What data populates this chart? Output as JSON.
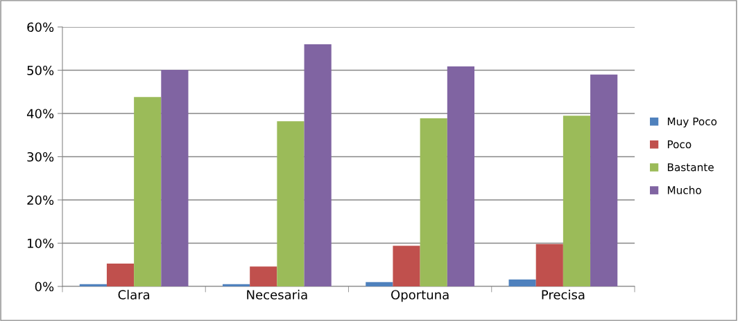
{
  "chart_data": {
    "type": "bar",
    "categories": [
      "Clara",
      "Necesaria",
      "Oportuna",
      "Precisa"
    ],
    "series": [
      {
        "name": "Muy Poco",
        "color": "#4f81bd",
        "values": [
          0.5,
          0.5,
          1.0,
          1.6
        ]
      },
      {
        "name": "Poco",
        "color": "#c0504d",
        "values": [
          5.3,
          4.6,
          9.4,
          9.8
        ]
      },
      {
        "name": "Bastante",
        "color": "#9bbb59",
        "values": [
          43.8,
          38.2,
          38.9,
          39.5
        ]
      },
      {
        "name": "Mucho",
        "color": "#8064a2",
        "values": [
          50.1,
          56.0,
          50.9,
          49.0
        ]
      }
    ],
    "ylim": [
      0,
      60
    ],
    "yticks": [
      {
        "value": 0,
        "label": "0%"
      },
      {
        "value": 10,
        "label": "10%"
      },
      {
        "value": 20,
        "label": "20%"
      },
      {
        "value": 30,
        "label": "30%"
      },
      {
        "value": 40,
        "label": "40%"
      },
      {
        "value": 50,
        "label": "50%"
      },
      {
        "value": 60,
        "label": "60%"
      }
    ],
    "grid": "y",
    "legend": "right"
  }
}
